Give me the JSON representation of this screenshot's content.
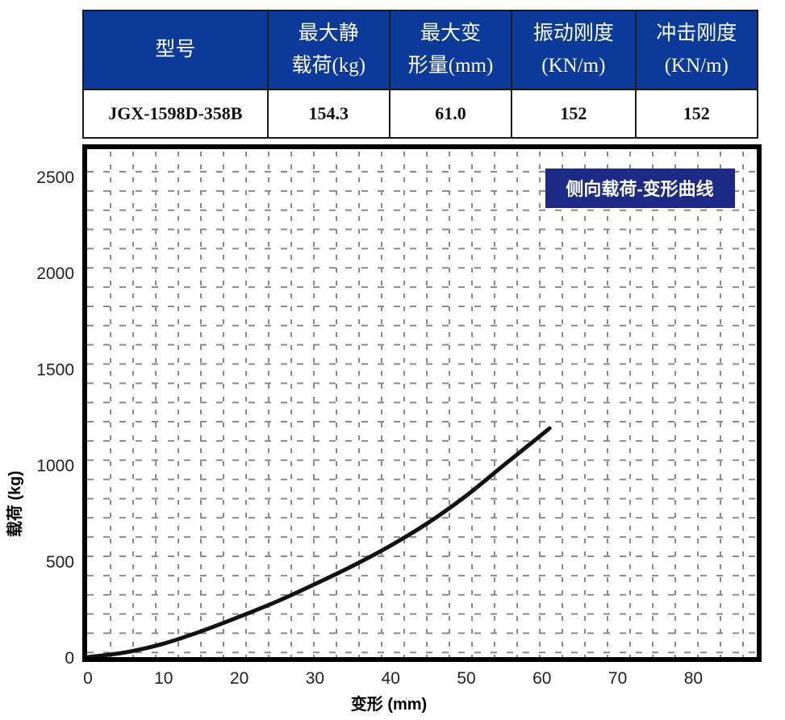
{
  "spec_table": {
    "headers": [
      {
        "line1": "型号",
        "line2": ""
      },
      {
        "line1": "最大静",
        "line2": "载荷(kg)"
      },
      {
        "line1": "最大变",
        "line2": "形量(mm)"
      },
      {
        "line1": "振动刚度",
        "line2": "(KN/m)"
      },
      {
        "line1": "冲击刚度",
        "line2": "(KN/m)"
      }
    ],
    "row": [
      "JGX-1598D-358B",
      "154.3",
      "61.0",
      "152",
      "152"
    ],
    "header_bg": "#0b3a9a"
  },
  "chart_data": {
    "type": "line",
    "title": "侧向载荷-变形曲线",
    "title_bg": "#1c2a85",
    "xlabel": "变形 (mm)",
    "ylabel": "载荷 (kg)",
    "xlim": [
      0,
      89
    ],
    "ylim": [
      0,
      2500
    ],
    "x_ticks": [
      0,
      10,
      20,
      30,
      40,
      50,
      60,
      70,
      80
    ],
    "y_ticks": [
      0,
      500,
      1000,
      1500,
      2000,
      2500
    ],
    "grid": true,
    "grid_style": "dashed",
    "legend": null,
    "series": [
      {
        "name": "侧向载荷-变形",
        "x": [
          0,
          5,
          10,
          15,
          20,
          25,
          30,
          35,
          40,
          45,
          50,
          55,
          61
        ],
        "y": [
          0,
          25,
          70,
          135,
          210,
          290,
          380,
          475,
          580,
          700,
          840,
          1000,
          1190
        ],
        "color": "#111111"
      }
    ]
  }
}
